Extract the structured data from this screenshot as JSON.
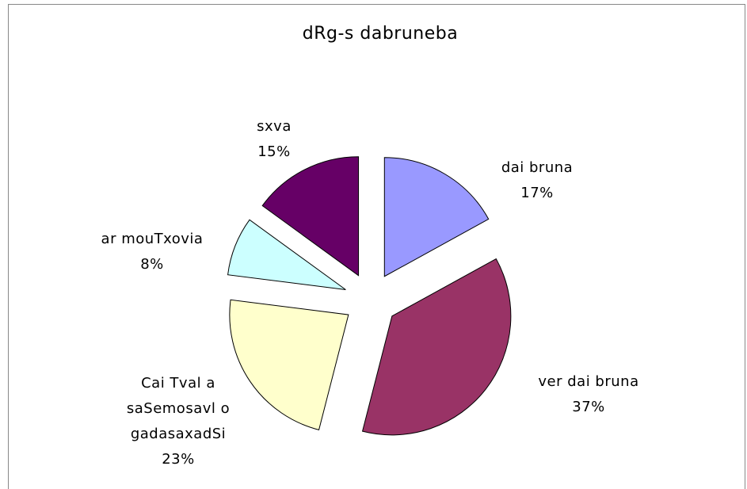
{
  "chart_data": {
    "type": "pie",
    "title": "dRg-s dabruneba",
    "categories": [
      "dai bruna",
      "ver dai bruna",
      "Cai Tval a saSemosavl o gadasaxadSi",
      "ar mouTxovia",
      "sxva"
    ],
    "values": [
      17,
      37,
      23,
      8,
      15
    ],
    "value_labels": [
      "17%",
      "37%",
      "23%",
      "8%",
      "15%"
    ],
    "colors": [
      "#9999ff",
      "#993366",
      "#ffffcc",
      "#ccffff",
      "#660066"
    ],
    "exploded": true
  }
}
